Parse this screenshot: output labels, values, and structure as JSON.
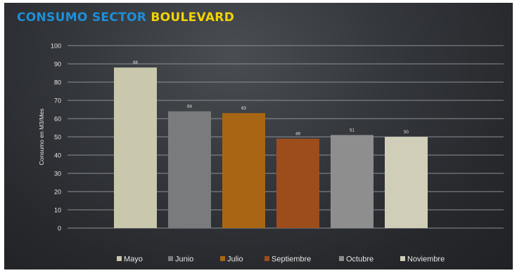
{
  "title": {
    "part1": "CONSUMO SECTOR",
    "part2": "BOULEVARD"
  },
  "colors": {
    "part1": "#1e8fd8",
    "part2": "#f2d500",
    "axis_text": "#e6e6e6",
    "grid": "#8c8f94"
  },
  "chart_data": {
    "type": "bar",
    "title": "CONSUMO SECTOR BOULEVARD",
    "ylabel": "Consumo en M3/Mes",
    "ylim": [
      0,
      100
    ],
    "yticks": [
      0,
      10,
      20,
      30,
      40,
      50,
      60,
      70,
      80,
      90,
      100
    ],
    "grid": true,
    "legend_position": "bottom",
    "categories": [
      "Mayo",
      "Junio",
      "Julio",
      "Septiembre",
      "Octubre",
      "Noviembre"
    ],
    "values": [
      88,
      64,
      63,
      49,
      51,
      50
    ],
    "colors": [
      "#c9c8ad",
      "#7a7b7c",
      "#a86614",
      "#9c4d1b",
      "#8e8e8e",
      "#d0ceb8"
    ]
  }
}
